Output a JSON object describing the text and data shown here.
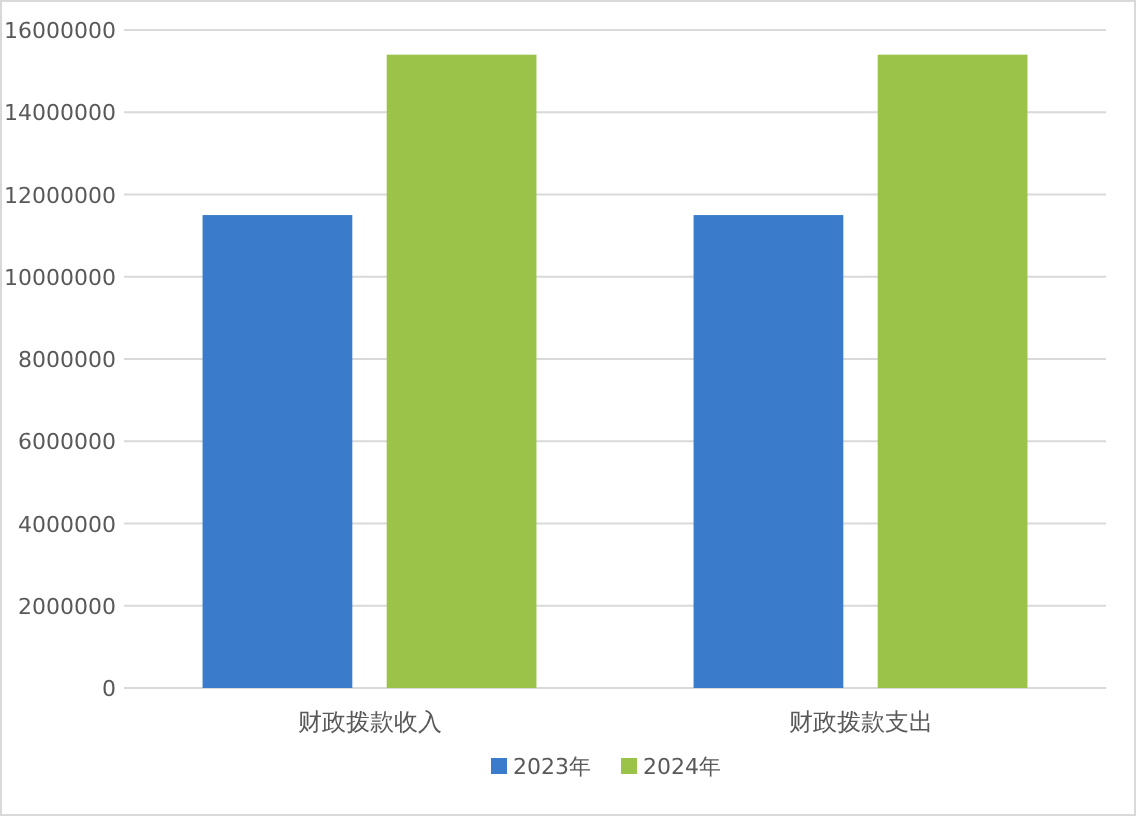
{
  "chart_data": {
    "type": "bar",
    "categories": [
      "财政拨款收入",
      "财政拨款支出"
    ],
    "series": [
      {
        "name": "2023年",
        "color": "#3a7bcb",
        "values": [
          11500000,
          11500000
        ]
      },
      {
        "name": "2024年",
        "color": "#9bc34a",
        "values": [
          15400000,
          15400000
        ]
      }
    ],
    "ylim": [
      0,
      16000000
    ],
    "yticks": [
      0,
      2000000,
      4000000,
      6000000,
      8000000,
      10000000,
      12000000,
      14000000,
      16000000
    ],
    "grid": "y",
    "legend": "bottom"
  }
}
